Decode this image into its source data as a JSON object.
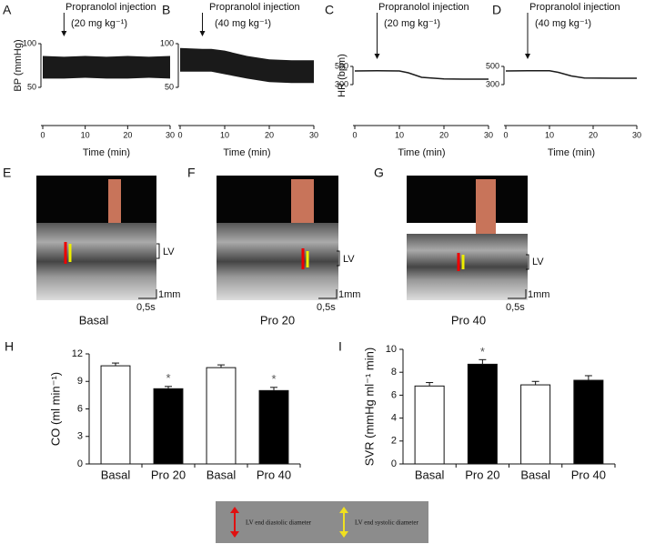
{
  "chart_data": [
    {
      "type": "band",
      "panel": "A",
      "annotation": "Propranolol injection",
      "dose": "(20 mg kg⁻¹)",
      "injection_time": 5,
      "ylabel": "BP (mmHg)",
      "xlabel": "Time (min)",
      "x": [
        0,
        5,
        10,
        15,
        20,
        25,
        30
      ],
      "series": [
        {
          "values": [
            86,
            85,
            86,
            85,
            86,
            85,
            86
          ]
        },
        {
          "values": [
            60,
            60,
            61,
            60,
            60,
            61,
            60
          ]
        }
      ],
      "color": "#1a1a1a",
      "xlim": [
        0,
        30
      ],
      "xticks": [
        0,
        10,
        20,
        30
      ],
      "ylim": [
        50,
        100
      ],
      "yticks": [
        50,
        100
      ]
    },
    {
      "type": "band",
      "panel": "B",
      "annotation": "Propranolol injection",
      "dose": "(40 mg kg⁻¹)",
      "injection_time": 5,
      "xlabel": "Time (min)",
      "x": [
        0,
        5,
        7,
        10,
        15,
        20,
        25,
        30
      ],
      "series": [
        {
          "values": [
            95,
            94,
            94,
            92,
            86,
            82,
            81,
            81
          ]
        },
        {
          "values": [
            68,
            68,
            68,
            65,
            60,
            56,
            55,
            55
          ]
        }
      ],
      "color": "#1a1a1a",
      "xlim": [
        0,
        30
      ],
      "xticks": [
        0,
        10,
        20,
        30
      ],
      "ylim": [
        50,
        100
      ],
      "yticks": [
        50,
        100
      ]
    },
    {
      "type": "line",
      "panel": "C",
      "annotation": "Propranolol injection",
      "dose": "(20 mg kg⁻¹)",
      "injection_time": 5,
      "ylabel": "HR (bpm)",
      "xlabel": "Time (min)",
      "x": [
        0,
        5,
        10,
        12,
        15,
        20,
        25,
        30
      ],
      "values": [
        450,
        452,
        450,
        430,
        380,
        362,
        360,
        360
      ],
      "color": "#1a1a1a",
      "xlim": [
        0,
        30
      ],
      "xticks": [
        0,
        10,
        20,
        30
      ],
      "ylim": [
        300,
        500
      ],
      "yticks": [
        300,
        500
      ]
    },
    {
      "type": "line",
      "panel": "D",
      "annotation": "Propranolol injection",
      "dose": "(40 mg kg⁻¹)",
      "injection_time": 5,
      "xlabel": "Time (min)",
      "x": [
        0,
        5,
        10,
        12,
        15,
        18,
        25,
        30
      ],
      "values": [
        450,
        452,
        452,
        435,
        395,
        372,
        370,
        370
      ],
      "color": "#1a1a1a",
      "xlim": [
        0,
        30
      ],
      "xticks": [
        0,
        10,
        20,
        30
      ],
      "ylim": [
        300,
        500
      ],
      "yticks": [
        300,
        500
      ]
    },
    {
      "type": "bar",
      "panel": "H",
      "ylabel": "CO (ml min⁻¹)",
      "categories": [
        "Basal",
        "Pro 20",
        "Basal",
        "Pro 40"
      ],
      "values": [
        10.7,
        8.2,
        10.5,
        8.0
      ],
      "errors": [
        0.3,
        0.25,
        0.3,
        0.35
      ],
      "significance": [
        null,
        "*",
        null,
        "*"
      ],
      "colors": [
        "#ffffff",
        "#000000",
        "#ffffff",
        "#000000"
      ],
      "ylim": [
        0,
        12
      ],
      "yticks": [
        0,
        3,
        6,
        9,
        12
      ]
    },
    {
      "type": "bar",
      "panel": "I",
      "ylabel": "SVR (mmHg ml⁻¹ min)",
      "categories": [
        "Basal",
        "Pro 20",
        "Basal",
        "Pro 40"
      ],
      "values": [
        6.8,
        8.7,
        6.9,
        7.3
      ],
      "errors": [
        0.3,
        0.4,
        0.3,
        0.4
      ],
      "significance": [
        null,
        "*",
        null,
        null
      ],
      "colors": [
        "#ffffff",
        "#000000",
        "#ffffff",
        "#000000"
      ],
      "ylim": [
        0,
        10
      ],
      "yticks": [
        0,
        2,
        4,
        6,
        8,
        10
      ]
    }
  ],
  "echo_panels": [
    {
      "panel": "E",
      "caption": "Basal",
      "lv": "LV",
      "scale_y": "1mm",
      "scale_x": "0,5s"
    },
    {
      "panel": "F",
      "caption": "Pro 20",
      "lv": "LV",
      "scale_y": "1mm",
      "scale_x": "0,5s"
    },
    {
      "panel": "G",
      "caption": "Pro 40",
      "lv": "LV",
      "scale_y": "1mm",
      "scale_x": "0,5s"
    }
  ],
  "legend": {
    "diastolic": "LV end diastolic diameter",
    "systolic": "LV end systolic diameter"
  }
}
